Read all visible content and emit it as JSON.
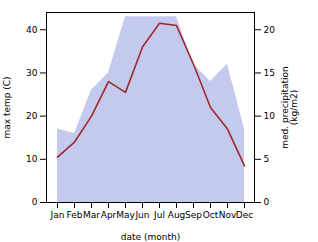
{
  "chart_data": {
    "type": "line",
    "xlabel": "date (month)",
    "ylabel": "max temp (C)",
    "y2label": "med. precipitation\n(kg/m2)",
    "categories": [
      "Jan",
      "Feb",
      "Mar",
      "Apr",
      "May",
      "Jun",
      "Jul",
      "Aug",
      "Sep",
      "Oct",
      "Nov",
      "Dec"
    ],
    "series": [
      {
        "type": "area",
        "axis": "y2",
        "color": "#b0b8e8",
        "values": [
          8.5,
          8.0,
          13.0,
          15.0,
          21.5,
          21.5,
          21.5,
          21.5,
          16.0,
          14.0,
          16.0,
          8.5
        ]
      },
      {
        "type": "line",
        "color": "#9e2a2a",
        "values": [
          10.5,
          14.0,
          20.0,
          28.0,
          25.5,
          36.0,
          41.5,
          41.0,
          32.0,
          22.0,
          17.0,
          8.5
        ]
      }
    ],
    "ylim": [
      0,
      44
    ],
    "yticks": [
      0,
      10,
      20,
      30,
      40
    ],
    "y2lim": [
      0,
      22
    ],
    "y2ticks": [
      0,
      5,
      10,
      15,
      20
    ]
  }
}
